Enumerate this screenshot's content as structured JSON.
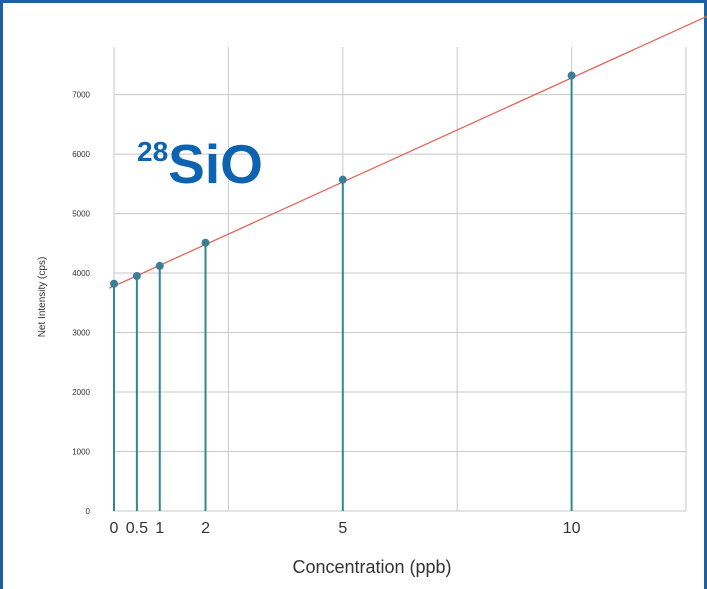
{
  "chart_data": {
    "type": "scatter",
    "species_label": {
      "prefix": "28",
      "main": "SiO"
    },
    "xlabel": "Concentration (ppb)",
    "ylabel": "Net Intensity (cps)",
    "xlim": [
      0,
      12.5
    ],
    "ylim": [
      0,
      7800
    ],
    "x_ticks": [
      0,
      0.5,
      1,
      2,
      5,
      10
    ],
    "x_tick_labels": [
      "0",
      "0.5",
      "1",
      "2",
      "5",
      "10"
    ],
    "y_ticks": [
      0,
      1000,
      2000,
      3000,
      4000,
      5000,
      6000,
      7000
    ],
    "y_tick_labels": [
      "0",
      "1000",
      "2000",
      "3000",
      "4000",
      "5000",
      "6000",
      "7000"
    ],
    "series": [
      {
        "x": [
          0,
          0.5,
          1,
          2,
          5,
          10
        ],
        "y": [
          3820,
          3950,
          4120,
          4510,
          5570,
          7320
        ]
      }
    ],
    "fit_line": {
      "intercept": 3780,
      "slope": 350
    },
    "grid": true,
    "colors": {
      "points": "#3a7f96",
      "stems": "#2f8a8a",
      "fit": "#e0685a",
      "grid": "#c8c8c8",
      "species_label": "#0d63b0",
      "frame": "#1f5f9f"
    }
  }
}
